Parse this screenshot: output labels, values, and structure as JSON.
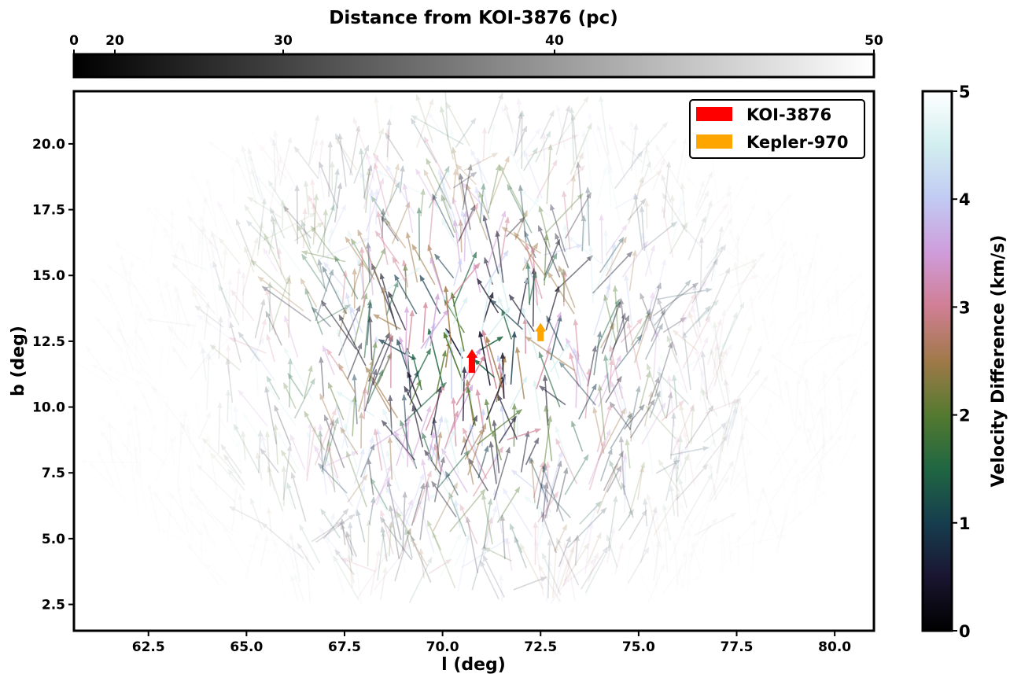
{
  "chart_data": {
    "type": "quiver",
    "xlabel": "l (deg)",
    "ylabel": "b (deg)",
    "xlim": [
      60.6,
      81.0
    ],
    "ylim": [
      1.5,
      22.0
    ],
    "x_ticks": [
      62.5,
      65.0,
      67.5,
      70.0,
      72.5,
      75.0,
      77.5,
      80.0
    ],
    "y_ticks": [
      2.5,
      5.0,
      7.5,
      10.0,
      12.5,
      15.0,
      17.5,
      20.0
    ],
    "legend": {
      "placement": "top-right",
      "entries": [
        {
          "label": "KOI-3876",
          "color": "#ff0000"
        },
        {
          "label": "Kepler-970",
          "color": "#ffa500"
        }
      ]
    },
    "highlighted_stars": [
      {
        "name": "KOI-3876",
        "l": 70.75,
        "b": 11.3,
        "dl": 0.0,
        "db": 0.9,
        "color": "#ff0000"
      },
      {
        "name": "Kepler-970",
        "l": 72.5,
        "b": 12.5,
        "dl": 0.0,
        "db": 0.7,
        "color": "#ffa500"
      }
    ],
    "distance_colorbar": {
      "title": "Distance from KOI-3876 (pc)",
      "orientation": "horizontal",
      "placement": "top",
      "colormap": "grayscale (black to white)",
      "ticks": [
        0,
        20,
        30,
        40,
        50
      ],
      "range": [
        0,
        50
      ]
    },
    "velocity_colorbar": {
      "title": "Velocity Difference (km/s)",
      "orientation": "vertical",
      "placement": "right",
      "colormap": "cubehelix",
      "ticks": [
        0,
        1,
        2,
        3,
        4,
        5
      ],
      "range": [
        0,
        5
      ]
    },
    "field": {
      "center_l": 70.75,
      "center_b": 11.3,
      "l_range": [
        61.5,
        80.5
      ],
      "b_range": [
        2.5,
        21.5
      ],
      "count": 1300,
      "typical_arrow_length_deg": 1.1,
      "note": "arrows fade with distance from KOI-3876"
    }
  }
}
